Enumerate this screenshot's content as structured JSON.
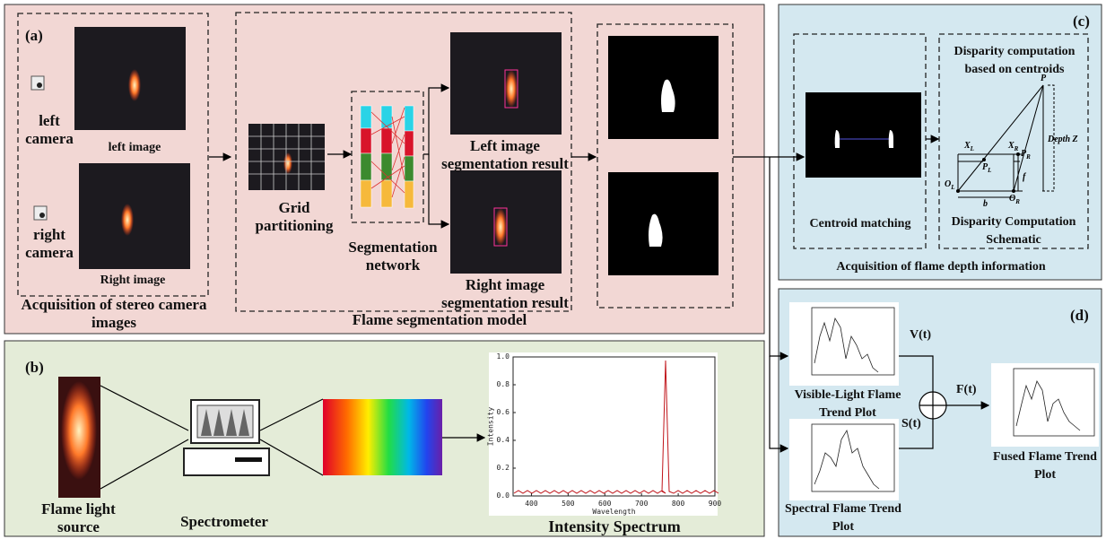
{
  "panel_a": {
    "label": "(a)",
    "left_camera": "left camera",
    "left_image": "left image",
    "right_camera": "right camera",
    "right_image": "Right image",
    "acquisition": "Acquisition of stereo camera images",
    "grid": "Grid partitioning",
    "network": "Segmentation network",
    "left_result": "Left image segmentation result",
    "right_result": "Right image segmentation result",
    "model": "Flame segmentation model"
  },
  "panel_b": {
    "label": "(b)",
    "source": "Flame light source",
    "spectrometer": "Spectrometer",
    "spectrum": {
      "title": "Intensity Spectrum",
      "xlabel": "Wavelength",
      "ylabel": "Intensity",
      "xlim": [
        350,
        900
      ],
      "ylim": [
        0,
        1
      ],
      "xticks": [
        400,
        500,
        600,
        700,
        800,
        900
      ],
      "yticks": [
        {
          "value": 0,
          "label": "0.0"
        },
        {
          "value": 0.2,
          "label": "0.2"
        },
        {
          "value": 0.4,
          "label": "0.4"
        },
        {
          "value": 0.6,
          "label": "0.6"
        },
        {
          "value": 0.8,
          "label": "0.8"
        },
        {
          "value": 1,
          "label": "1.0"
        }
      ]
    }
  },
  "panel_c": {
    "label": "(c)",
    "disparity_title": "Disparity computation based on centroids",
    "centroid": "Centroid matching",
    "schematic": "Disparity Computation Schematic",
    "depth_info": "Acquisition of flame depth information",
    "symbols": {
      "p": "P",
      "depth": "Depth Z",
      "xl": "X",
      "xl_sub": "L",
      "xr": "X",
      "xr_sub": "R",
      "pl": "P",
      "pl_sub": "L",
      "pr": "P",
      "pr_sub": "R",
      "ol": "O",
      "ol_sub": "L",
      "or": "O",
      "or_sub": "R",
      "b": "b",
      "f": "f"
    }
  },
  "panel_d": {
    "label": "(d)",
    "vt": "V(t)",
    "st": "S(t)",
    "ft": "F(t)",
    "visible": "Visible-Light Flame Trend Plot",
    "spectral": "Spectral Flame Trend Plot",
    "fused": "Fused Flame Trend Plot"
  }
}
